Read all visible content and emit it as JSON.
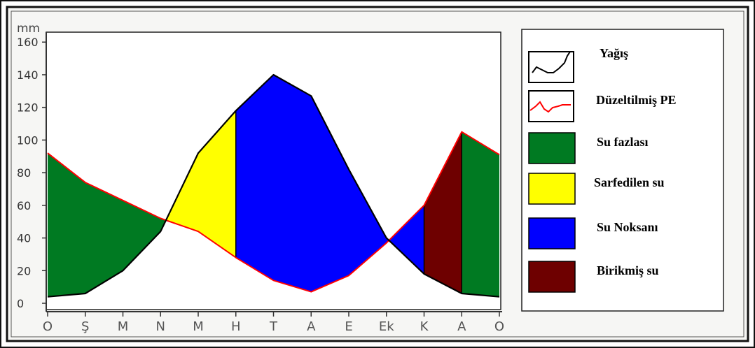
{
  "chart_data": {
    "type": "area",
    "ylabel": "mm",
    "ylim": [
      0,
      160
    ],
    "yticks": [
      0,
      20,
      40,
      60,
      80,
      100,
      120,
      140,
      160
    ],
    "categories": [
      "O",
      "Ş",
      "M",
      "N",
      "M",
      "H",
      "T",
      "A",
      "E",
      "Ek",
      "K",
      "A",
      "O"
    ],
    "series": [
      {
        "name": "Yağış",
        "style": "black-line",
        "values": [
          4,
          6,
          20,
          44,
          92,
          118,
          140,
          127,
          82,
          40,
          18,
          6,
          4
        ]
      },
      {
        "name": "Düzeltilmiş PE",
        "style": "red-line",
        "values": [
          92,
          74,
          63,
          52,
          44,
          28,
          14,
          7,
          17,
          37,
          60,
          105,
          91
        ]
      }
    ],
    "legend": [
      {
        "label": "Yağış",
        "kind": "line",
        "color": "#000000"
      },
      {
        "label": "Düzeltilmiş PE",
        "kind": "line",
        "color": "#ff0000"
      },
      {
        "label": "Su fazlası",
        "kind": "fill",
        "color": "#007a22"
      },
      {
        "label": "Sarfedilen su",
        "kind": "fill",
        "color": "#ffff00"
      },
      {
        "label": "Su Noksanı",
        "kind": "fill",
        "color": "#0000ff"
      },
      {
        "label": "Birikmiş su",
        "kind": "fill",
        "color": "#6e0000"
      }
    ],
    "legend_position": "right",
    "grid": false
  },
  "colors": {
    "surplus": "#007a22",
    "utilization": "#ffff00",
    "deficit": "#0000ff",
    "recharge": "#6e0000",
    "precip_line": "#000000",
    "pe_line": "#ff0000"
  }
}
